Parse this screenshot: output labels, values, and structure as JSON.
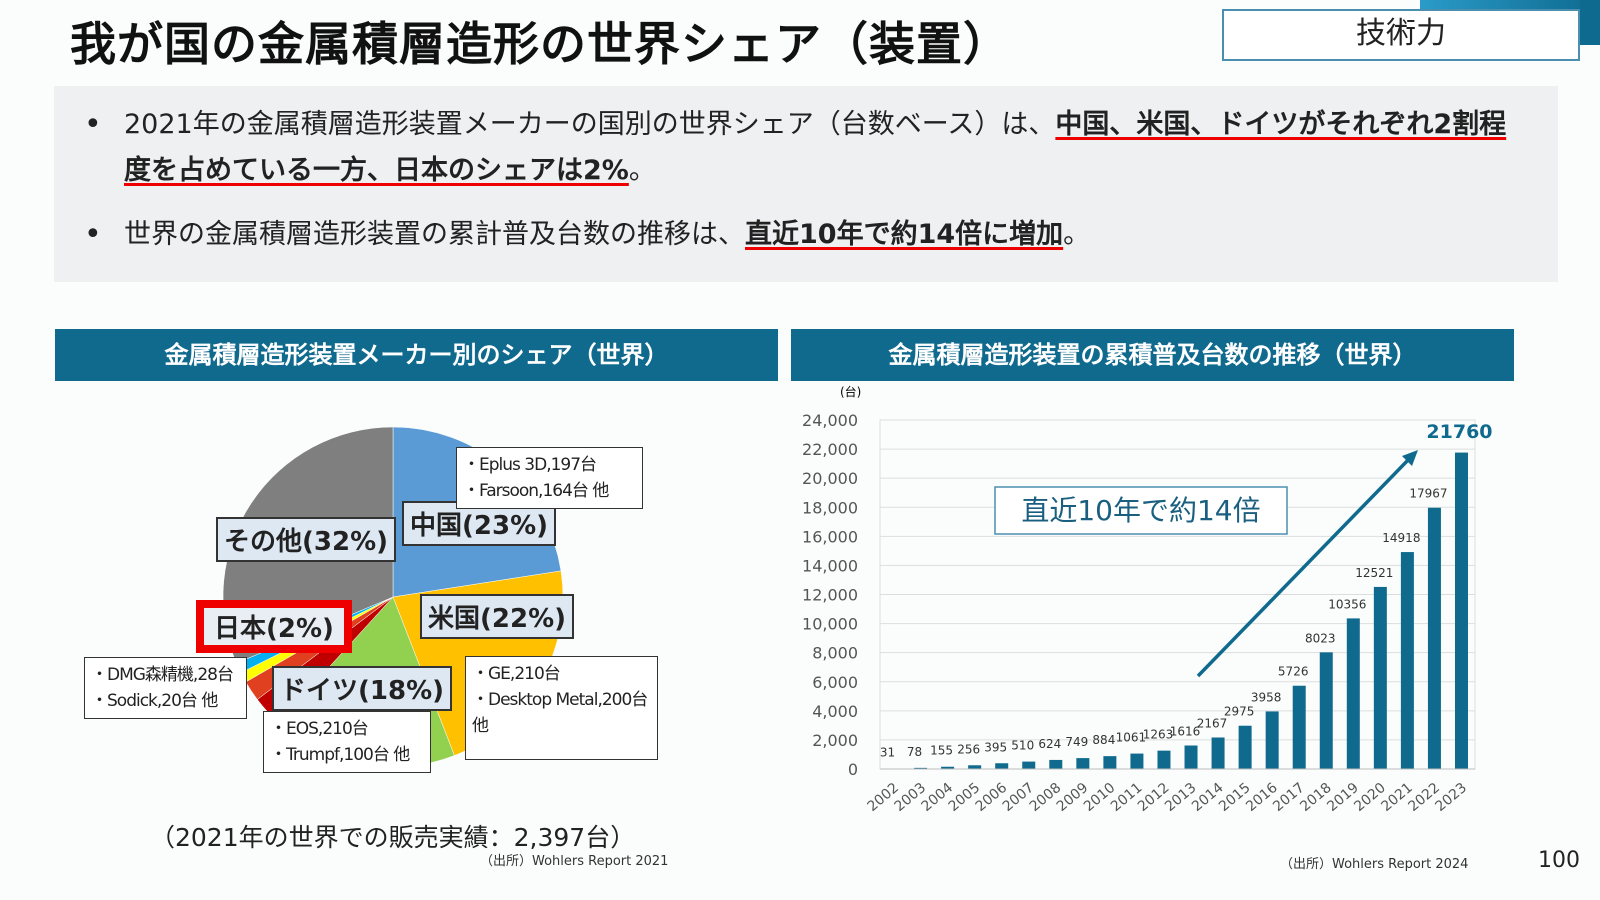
{
  "title": "我が国の金属積層造形の世界シェア（装置）",
  "tag": "技術力",
  "summary": {
    "b1_pre": "2021年の金属積層造形装置メーカーの国別の世界シェア（台数ベース）は、",
    "b1_hl": "中国、米国、ドイツがそれぞれ2割程度を占めている一方、日本のシェアは2%",
    "b1_post": "。",
    "b2_pre": "世界の金属積層造形装置の累計普及台数の推移は、",
    "b2_hl": "直近10年で約14倍に増加",
    "b2_post": "。"
  },
  "left_panel": {
    "header": "金属積層造形装置メーカー別のシェア（世界）",
    "sales": "（2021年の世界での販売実績：2,397台）",
    "source": "（出所）Wohlers Report 2021",
    "notes": {
      "china": [
        "・Eplus 3D,197台",
        "・Farsoon,164台 他"
      ],
      "us": [
        "・GE,210台",
        "・Desktop Metal,200台",
        "他"
      ],
      "germany": [
        "・EOS,210台",
        "・Trumpf,100台 他"
      ],
      "japan": [
        "・DMG森精機,28台",
        "・Sodick,20台 他"
      ]
    }
  },
  "right_panel": {
    "header": "金属積層造形装置の累積普及台数の推移（世界）",
    "source": "（出所）Wohlers Report 2024",
    "callout": "直近10年で約14倍",
    "highlight": "21760"
  },
  "page_number": "100",
  "chart_data": [
    {
      "type": "pie",
      "title": "金属積層造形装置メーカー別のシェア（世界）",
      "slices": [
        {
          "label": "中国(23%)",
          "value": 23,
          "color": "#5b9bd5"
        },
        {
          "label": "米国(22%)",
          "value": 22,
          "color": "#ffc000"
        },
        {
          "label": "ドイツ(18%)",
          "value": 18,
          "color": "#92d050"
        },
        {
          "label": "",
          "value": 3,
          "color": "#c00000"
        },
        {
          "label": "日本(2%)",
          "value": 2,
          "color": "#e04020"
        },
        {
          "label": "",
          "value": 1,
          "color": "#ffff00"
        },
        {
          "label": "",
          "value": 1,
          "color": "#00b0f0"
        },
        {
          "label": "その他(32%)",
          "value": 32,
          "color": "#7f7f7f"
        }
      ]
    },
    {
      "type": "bar",
      "title": "金属積層造形装置の累積普及台数の推移（世界）",
      "ylabel": "(台)",
      "ylim": [
        0,
        24000
      ],
      "yticks": [
        "0",
        "2,000",
        "4,000",
        "6,000",
        "8,000",
        "10,000",
        "12,000",
        "14,000",
        "16,000",
        "18,000",
        "20,000",
        "22,000",
        "24,000"
      ],
      "categories": [
        "2002",
        "2003",
        "2004",
        "2005",
        "2006",
        "2007",
        "2008",
        "2009",
        "2010",
        "2011",
        "2012",
        "2013",
        "2014",
        "2015",
        "2016",
        "2017",
        "2018",
        "2019",
        "2020",
        "2021",
        "2022",
        "2023"
      ],
      "values": [
        31,
        78,
        155,
        256,
        395,
        510,
        624,
        749,
        884,
        1061,
        1263,
        1616,
        2167,
        2975,
        3958,
        5726,
        8023,
        10356,
        12521,
        14918,
        17967,
        21760
      ],
      "color": "#0f6a8e"
    }
  ]
}
